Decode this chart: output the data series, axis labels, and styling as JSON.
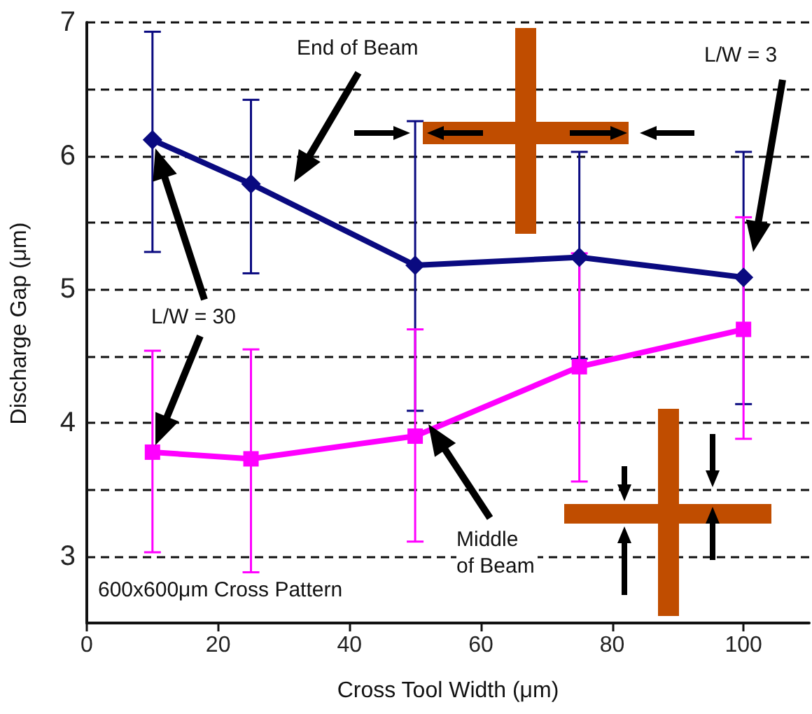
{
  "chart_data": {
    "type": "line",
    "x": [
      10,
      25,
      50,
      75,
      100
    ],
    "series": [
      {
        "color": "#0a0a80",
        "marker": "diamond",
        "values": [
          6.12,
          5.79,
          5.18,
          5.24,
          5.09
        ],
        "errors": [
          [
            5.28,
            6.93
          ],
          [
            5.12,
            6.42
          ],
          [
            4.09,
            6.26
          ],
          [
            4.48,
            6.03
          ],
          [
            4.14,
            6.03
          ]
        ]
      },
      {
        "color": "#ff00ff",
        "marker": "square",
        "values": [
          3.78,
          3.73,
          3.9,
          4.42,
          4.7
        ],
        "errors": [
          [
            3.03,
            4.54
          ],
          [
            2.88,
            4.55
          ],
          [
            3.11,
            4.7
          ],
          [
            3.56,
            5.27
          ],
          [
            3.88,
            5.54
          ]
        ]
      }
    ],
    "xlabel": "Cross Tool Width (μm)",
    "ylabel": "Discharge Gap (μm)",
    "xlim": [
      0,
      110
    ],
    "xticks": [
      0,
      20,
      40,
      60,
      80,
      100
    ],
    "ylim": [
      2.5,
      7
    ],
    "yticks": [
      3,
      {
        "value": 3.5,
        "label": null
      },
      4,
      {
        "value": 4.5,
        "label": null
      },
      5,
      {
        "value": 5.5,
        "label": null
      },
      6,
      {
        "value": 6.5,
        "label": null
      },
      7
    ],
    "grid": "y",
    "annotations": [
      "End of Beam",
      "L/W = 3",
      "L/W = 30",
      "Middle of Beam",
      "600x600μm Cross Pattern"
    ]
  }
}
